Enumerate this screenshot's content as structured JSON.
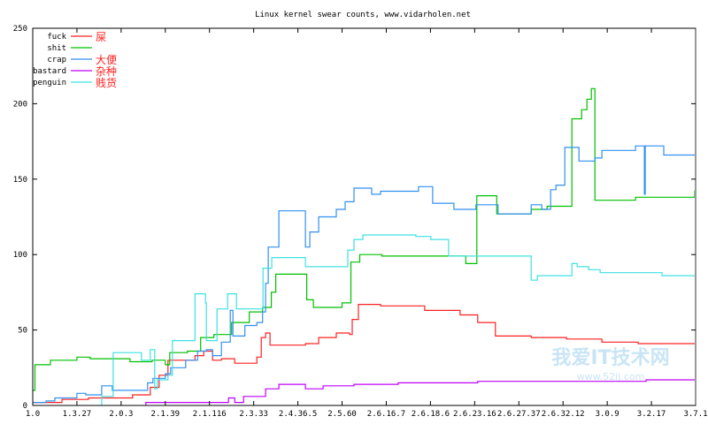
{
  "chart_data": {
    "type": "line",
    "title": "Linux kernel swear counts, www.vidarholen.net",
    "xlabel": "",
    "ylabel": "",
    "x_tick_labels": [
      "1.0",
      "1.3.27",
      "2.0.3",
      "2.1.39",
      "2.1.116",
      "2.3.33",
      "2.4.36.5",
      "2.5.60",
      "2.6.16.7",
      "2.6.18.6",
      "2.6.23.16",
      "2.6.27.37",
      "2.6.32.12",
      "3.0.9",
      "3.2.17",
      "3.7.1"
    ],
    "y_ticks": [
      0,
      50,
      100,
      150,
      200,
      250
    ],
    "ylim": [
      0,
      250
    ],
    "grid": false,
    "legend_position": "top-left",
    "x_note": "x values are positions along the version axis (0 = 1.0, 15 = 3.7.1)",
    "series": [
      {
        "name": "fuck",
        "annotation": "屎",
        "color": "#ff2020",
        "points": [
          [
            0,
            2
          ],
          [
            0.66,
            2
          ],
          [
            0.66,
            4
          ],
          [
            1.26,
            4
          ],
          [
            1.26,
            5
          ],
          [
            2.26,
            5
          ],
          [
            2.26,
            7
          ],
          [
            2.66,
            7
          ],
          [
            2.66,
            12
          ],
          [
            2.86,
            12
          ],
          [
            2.86,
            20
          ],
          [
            3.06,
            20
          ],
          [
            3.06,
            30
          ],
          [
            3.67,
            30
          ],
          [
            3.67,
            33
          ],
          [
            3.87,
            33
          ],
          [
            3.87,
            36
          ],
          [
            4.07,
            36
          ],
          [
            4.07,
            30
          ],
          [
            4.27,
            30
          ],
          [
            4.27,
            31
          ],
          [
            4.57,
            31
          ],
          [
            4.57,
            28
          ],
          [
            5.07,
            28
          ],
          [
            5.07,
            32
          ],
          [
            5.17,
            32
          ],
          [
            5.17,
            45
          ],
          [
            5.27,
            45
          ],
          [
            5.27,
            48
          ],
          [
            5.37,
            48
          ],
          [
            5.37,
            40
          ],
          [
            6.17,
            40
          ],
          [
            6.17,
            41
          ],
          [
            6.47,
            41
          ],
          [
            6.47,
            45
          ],
          [
            6.87,
            45
          ],
          [
            6.87,
            48
          ],
          [
            7.17,
            48
          ],
          [
            7.17,
            47
          ],
          [
            7.23,
            47
          ],
          [
            7.23,
            57
          ],
          [
            7.37,
            57
          ],
          [
            7.37,
            67
          ],
          [
            7.87,
            67
          ],
          [
            7.87,
            66
          ],
          [
            8.87,
            66
          ],
          [
            8.87,
            63
          ],
          [
            9.67,
            63
          ],
          [
            9.67,
            60
          ],
          [
            10.07,
            60
          ],
          [
            10.07,
            55
          ],
          [
            10.47,
            55
          ],
          [
            10.47,
            46
          ],
          [
            11.28,
            46
          ],
          [
            11.28,
            45
          ],
          [
            12.08,
            45
          ],
          [
            12.08,
            44
          ],
          [
            12.88,
            44
          ],
          [
            12.88,
            42
          ],
          [
            13.7,
            42
          ],
          [
            13.7,
            41
          ],
          [
            15,
            41
          ]
        ]
      },
      {
        "name": "shit",
        "annotation": "",
        "color": "#00c000",
        "points": [
          [
            0,
            10
          ],
          [
            0.05,
            10
          ],
          [
            0.05,
            27
          ],
          [
            0.4,
            27
          ],
          [
            0.4,
            30
          ],
          [
            1.0,
            30
          ],
          [
            1.0,
            32
          ],
          [
            1.3,
            32
          ],
          [
            1.3,
            31
          ],
          [
            2.2,
            31
          ],
          [
            2.2,
            29
          ],
          [
            2.7,
            29
          ],
          [
            2.7,
            30
          ],
          [
            3.0,
            30
          ],
          [
            3.0,
            27
          ],
          [
            3.1,
            27
          ],
          [
            3.1,
            35
          ],
          [
            3.5,
            35
          ],
          [
            3.5,
            36
          ],
          [
            3.8,
            36
          ],
          [
            3.8,
            45
          ],
          [
            4.1,
            45
          ],
          [
            4.1,
            47
          ],
          [
            4.5,
            47
          ],
          [
            4.5,
            55
          ],
          [
            4.9,
            55
          ],
          [
            4.9,
            62
          ],
          [
            5.2,
            62
          ],
          [
            5.2,
            65
          ],
          [
            5.4,
            65
          ],
          [
            5.4,
            75
          ],
          [
            5.5,
            75
          ],
          [
            5.5,
            87
          ],
          [
            6.2,
            87
          ],
          [
            6.2,
            70
          ],
          [
            6.35,
            70
          ],
          [
            6.35,
            65
          ],
          [
            7.0,
            65
          ],
          [
            7.0,
            68
          ],
          [
            7.2,
            68
          ],
          [
            7.2,
            95
          ],
          [
            7.4,
            95
          ],
          [
            7.4,
            100
          ],
          [
            7.9,
            100
          ],
          [
            7.9,
            99
          ],
          [
            9.8,
            99
          ],
          [
            9.8,
            94
          ],
          [
            10.05,
            94
          ],
          [
            10.05,
            139
          ],
          [
            10.5,
            139
          ],
          [
            10.5,
            127
          ],
          [
            11.28,
            127
          ],
          [
            11.28,
            130
          ],
          [
            11.64,
            130
          ],
          [
            11.64,
            132
          ],
          [
            12.2,
            132
          ],
          [
            12.2,
            190
          ],
          [
            12.42,
            190
          ],
          [
            12.42,
            196
          ],
          [
            12.54,
            196
          ],
          [
            12.54,
            203
          ],
          [
            12.64,
            203
          ],
          [
            12.64,
            210
          ],
          [
            12.72,
            210
          ],
          [
            12.72,
            136
          ],
          [
            13.64,
            136
          ],
          [
            13.64,
            138
          ],
          [
            14.98,
            138
          ],
          [
            14.98,
            142
          ],
          [
            15,
            142
          ]
        ]
      },
      {
        "name": "crap",
        "annotation": "大便",
        "color": "#3090f0",
        "points": [
          [
            0,
            2
          ],
          [
            0.3,
            2
          ],
          [
            0.3,
            3
          ],
          [
            0.5,
            3
          ],
          [
            0.5,
            5
          ],
          [
            1.0,
            5
          ],
          [
            1.0,
            8
          ],
          [
            1.2,
            8
          ],
          [
            1.2,
            7
          ],
          [
            1.56,
            7
          ],
          [
            1.56,
            13
          ],
          [
            1.8,
            13
          ],
          [
            1.8,
            10
          ],
          [
            2.6,
            10
          ],
          [
            2.6,
            15
          ],
          [
            2.72,
            15
          ],
          [
            2.72,
            18
          ],
          [
            3.0,
            18
          ],
          [
            3.0,
            21
          ],
          [
            3.12,
            21
          ],
          [
            3.12,
            25
          ],
          [
            3.46,
            25
          ],
          [
            3.46,
            30
          ],
          [
            3.73,
            30
          ],
          [
            3.73,
            36
          ],
          [
            3.93,
            36
          ],
          [
            3.93,
            37
          ],
          [
            4.07,
            37
          ],
          [
            4.07,
            33
          ],
          [
            4.27,
            33
          ],
          [
            4.27,
            42
          ],
          [
            4.47,
            42
          ],
          [
            4.47,
            63
          ],
          [
            4.53,
            63
          ],
          [
            4.53,
            46
          ],
          [
            4.8,
            46
          ],
          [
            4.8,
            53
          ],
          [
            5.07,
            53
          ],
          [
            5.07,
            55
          ],
          [
            5.2,
            55
          ],
          [
            5.2,
            62
          ],
          [
            5.27,
            62
          ],
          [
            5.27,
            81
          ],
          [
            5.33,
            81
          ],
          [
            5.33,
            105
          ],
          [
            5.57,
            105
          ],
          [
            5.57,
            129
          ],
          [
            6.17,
            129
          ],
          [
            6.17,
            105
          ],
          [
            6.27,
            105
          ],
          [
            6.27,
            115
          ],
          [
            6.47,
            115
          ],
          [
            6.47,
            125
          ],
          [
            6.87,
            125
          ],
          [
            6.87,
            130
          ],
          [
            7.07,
            130
          ],
          [
            7.07,
            135
          ],
          [
            7.27,
            135
          ],
          [
            7.27,
            144
          ],
          [
            7.67,
            144
          ],
          [
            7.67,
            140
          ],
          [
            7.87,
            140
          ],
          [
            7.87,
            142
          ],
          [
            8.73,
            142
          ],
          [
            8.73,
            145
          ],
          [
            9.05,
            145
          ],
          [
            9.05,
            134
          ],
          [
            9.53,
            134
          ],
          [
            9.53,
            130
          ],
          [
            10.03,
            130
          ],
          [
            10.03,
            133
          ],
          [
            10.53,
            133
          ],
          [
            10.53,
            127
          ],
          [
            11.28,
            127
          ],
          [
            11.28,
            133
          ],
          [
            11.52,
            133
          ],
          [
            11.52,
            130
          ],
          [
            11.72,
            130
          ],
          [
            11.72,
            143
          ],
          [
            11.84,
            143
          ],
          [
            11.84,
            146
          ],
          [
            11.84,
            146
          ],
          [
            12.04,
            146
          ],
          [
            12.04,
            171
          ],
          [
            12.36,
            171
          ],
          [
            12.36,
            162
          ],
          [
            12.72,
            162
          ],
          [
            12.72,
            164
          ],
          [
            12.88,
            164
          ],
          [
            12.88,
            169
          ],
          [
            13.64,
            169
          ],
          [
            13.64,
            172
          ],
          [
            13.84,
            172
          ],
          [
            13.84,
            140
          ],
          [
            13.86,
            140
          ],
          [
            13.86,
            172
          ],
          [
            14.28,
            172
          ],
          [
            14.28,
            166
          ],
          [
            15,
            166
          ]
        ]
      },
      {
        "name": "bastard",
        "annotation": "杂种",
        "color": "#c000ff",
        "points": [
          [
            2.56,
            0
          ],
          [
            2.56,
            2
          ],
          [
            4.43,
            2
          ],
          [
            4.43,
            5
          ],
          [
            4.57,
            5
          ],
          [
            4.57,
            2
          ],
          [
            4.77,
            2
          ],
          [
            4.77,
            6
          ],
          [
            5.27,
            6
          ],
          [
            5.27,
            11
          ],
          [
            5.57,
            11
          ],
          [
            5.57,
            14
          ],
          [
            6.17,
            14
          ],
          [
            6.17,
            11
          ],
          [
            6.57,
            11
          ],
          [
            6.57,
            13
          ],
          [
            7.27,
            13
          ],
          [
            7.27,
            14
          ],
          [
            8.27,
            14
          ],
          [
            8.27,
            15
          ],
          [
            10.07,
            15
          ],
          [
            10.07,
            16
          ],
          [
            13.88,
            16
          ],
          [
            13.88,
            17
          ],
          [
            15,
            17
          ]
        ]
      },
      {
        "name": "penguin",
        "annotation": "贱货",
        "color": "#40e0e0",
        "points": [
          [
            1.56,
            0
          ],
          [
            1.56,
            6
          ],
          [
            1.82,
            6
          ],
          [
            1.82,
            35
          ],
          [
            2.46,
            35
          ],
          [
            2.46,
            30
          ],
          [
            2.66,
            30
          ],
          [
            2.66,
            37
          ],
          [
            2.76,
            37
          ],
          [
            2.76,
            11
          ],
          [
            2.82,
            11
          ],
          [
            2.82,
            17
          ],
          [
            3.06,
            17
          ],
          [
            3.06,
            20
          ],
          [
            3.16,
            20
          ],
          [
            3.16,
            43
          ],
          [
            3.67,
            43
          ],
          [
            3.67,
            74
          ],
          [
            3.91,
            74
          ],
          [
            3.91,
            68
          ],
          [
            3.93,
            68
          ],
          [
            3.93,
            43
          ],
          [
            4.17,
            43
          ],
          [
            4.17,
            64
          ],
          [
            4.41,
            64
          ],
          [
            4.41,
            74
          ],
          [
            4.61,
            74
          ],
          [
            4.61,
            64
          ],
          [
            5.21,
            64
          ],
          [
            5.21,
            91
          ],
          [
            5.41,
            91
          ],
          [
            5.41,
            98
          ],
          [
            6.17,
            98
          ],
          [
            6.17,
            92
          ],
          [
            7.13,
            92
          ],
          [
            7.13,
            103
          ],
          [
            7.27,
            103
          ],
          [
            7.27,
            110
          ],
          [
            7.47,
            110
          ],
          [
            7.47,
            113
          ],
          [
            8.67,
            113
          ],
          [
            8.67,
            112
          ],
          [
            9.01,
            112
          ],
          [
            9.01,
            110
          ],
          [
            9.41,
            110
          ],
          [
            9.41,
            99
          ],
          [
            11.28,
            99
          ],
          [
            11.28,
            83
          ],
          [
            11.42,
            83
          ],
          [
            11.42,
            86
          ],
          [
            12.2,
            86
          ],
          [
            12.2,
            94
          ],
          [
            12.32,
            94
          ],
          [
            12.32,
            92
          ],
          [
            12.58,
            92
          ],
          [
            12.58,
            90
          ],
          [
            12.84,
            90
          ],
          [
            12.84,
            88
          ],
          [
            14.24,
            88
          ],
          [
            14.24,
            86
          ],
          [
            15,
            86
          ]
        ]
      }
    ]
  },
  "watermark": "我爱IT技术网 www.52ij.com"
}
